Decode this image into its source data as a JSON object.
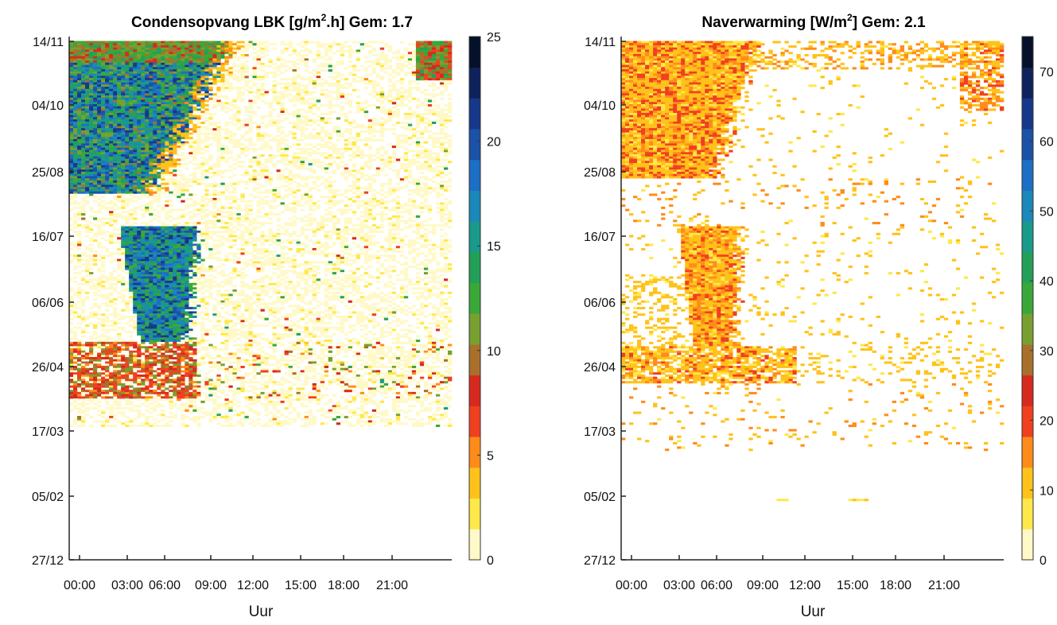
{
  "chart_data": [
    {
      "type": "heatmap",
      "title_main": "Condensopvang LBK [g/m",
      "title_sup": "2",
      "title_rest": ".h] Gem: 1.7",
      "title": "Condensopvang LBK [g/m2.h] Gem: 1.7",
      "xlabel": "Uur",
      "ylabel": "",
      "x_ticks": [
        "00:00",
        "03:00",
        "06:00",
        "09:00",
        "12:00",
        "15:00",
        "18:00",
        "21:00"
      ],
      "y_ticks": [
        "14/11",
        "04/10",
        "25/08",
        "16/07",
        "06/06",
        "26/04",
        "17/03",
        "05/02",
        "27/12"
      ],
      "colorbar_ticks": [
        "25",
        "20",
        "15",
        "10",
        "5",
        "0"
      ],
      "colorbar_range": [
        0,
        25
      ],
      "data_start": "17/03",
      "data_end": "14/11",
      "summary": {
        "mean": 1.7,
        "high_band": {
          "autumn": {
            "from": "25/08",
            "to": "14/11",
            "hours": [
              "00:00",
              "09:00"
            ],
            "value": 18
          },
          "spring": {
            "from": "26/04",
            "to": "16/07",
            "hours": [
              "03:00",
              "08:00"
            ],
            "value": 17
          }
        },
        "background_value": 0.5
      }
    },
    {
      "type": "heatmap",
      "title_main": "Naverwarming [W/m",
      "title_sup": "2",
      "title_rest": "] Gem: 2.1",
      "title": "Naverwarming [W/m2] Gem: 2.1",
      "xlabel": "Uur",
      "ylabel": "",
      "x_ticks": [
        "00:00",
        "03:00",
        "06:00",
        "09:00",
        "12:00",
        "15:00",
        "18:00",
        "21:00"
      ],
      "y_ticks": [
        "14/11",
        "04/10",
        "25/08",
        "16/07",
        "06/06",
        "26/04",
        "17/03",
        "05/02",
        "27/12"
      ],
      "colorbar_ticks": [
        "70",
        "60",
        "50",
        "40",
        "30",
        "20",
        "10",
        "0"
      ],
      "colorbar_range": [
        0,
        75
      ],
      "data_start": "05/02",
      "data_end": "14/11",
      "summary": {
        "mean": 2.1,
        "typical_value_range": [
          8,
          20
        ]
      }
    }
  ],
  "colors": {
    "colormap": [
      "#fff9c8",
      "#ffe84a",
      "#ffc21a",
      "#ff8c1a",
      "#f04020",
      "#d72a1e",
      "#a8702a",
      "#78a030",
      "#3aa838",
      "#22a058",
      "#1a9a8a",
      "#1a88b8",
      "#1c6fc4",
      "#1a52a8",
      "#16388a",
      "#0e225c",
      "#05102a"
    ]
  }
}
